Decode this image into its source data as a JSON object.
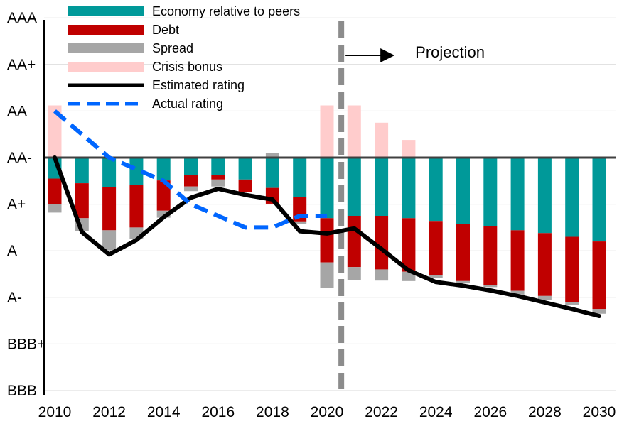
{
  "chart_data": {
    "type": "bar",
    "title": "",
    "xlabel": "",
    "ylabel": "",
    "baseline_rating": "AA-",
    "y_ticks": [
      "AAA",
      "AA+",
      "AA",
      "AA-",
      "A+",
      "A",
      "A-",
      "BBB+",
      "BBB"
    ],
    "y_range_notches": [
      -5,
      3
    ],
    "x_tick_labels": [
      "2010",
      "2012",
      "2014",
      "2016",
      "2018",
      "2020",
      "2022",
      "2024",
      "2026",
      "2028",
      "2030"
    ],
    "years": [
      2010,
      2011,
      2012,
      2013,
      2014,
      2015,
      2016,
      2017,
      2018,
      2019,
      2020,
      2021,
      2022,
      2023,
      2024,
      2025,
      2026,
      2027,
      2028,
      2029,
      2030
    ],
    "series": [
      {
        "name": "Economy relative to peers",
        "color": "#009999",
        "kind": "bar",
        "values": [
          -0.45,
          -0.55,
          -0.63,
          -0.59,
          -0.49,
          -0.37,
          -0.37,
          -0.47,
          -0.65,
          -0.85,
          -1.3,
          -1.25,
          -1.25,
          -1.3,
          -1.36,
          -1.42,
          -1.47,
          -1.56,
          -1.62,
          -1.7,
          -1.8
        ]
      },
      {
        "name": "Debt",
        "color": "#C00000",
        "kind": "bar",
        "values": [
          -0.55,
          -0.75,
          -0.93,
          -0.91,
          -0.65,
          -0.25,
          -0.1,
          -0.27,
          -0.34,
          -0.52,
          -0.95,
          -1.1,
          -1.15,
          -1.15,
          -1.16,
          -1.23,
          -1.27,
          -1.3,
          -1.35,
          -1.4,
          -1.45
        ]
      },
      {
        "name": "Spread",
        "color": "#A6A6A6",
        "kind": "bar",
        "values": [
          -0.18,
          -0.28,
          -0.43,
          -0.25,
          -0.15,
          -0.1,
          -0.15,
          0,
          0.1,
          -0.05,
          -0.55,
          -0.28,
          -0.24,
          -0.2,
          -0.07,
          -0.05,
          -0.04,
          -0.08,
          -0.08,
          -0.06,
          -0.1
        ]
      },
      {
        "name": "Crisis bonus",
        "color": "#FFCCCC",
        "kind": "bar",
        "values": [
          1.12,
          0,
          0,
          0,
          0,
          0,
          0,
          0,
          0,
          0,
          1.12,
          1.12,
          0.75,
          0.38,
          0,
          0,
          0,
          0,
          0,
          0,
          0
        ]
      },
      {
        "name": "Estimated rating",
        "color": "#000000",
        "kind": "line",
        "values": [
          0,
          -1.6,
          -2.08,
          -1.77,
          -1.28,
          -0.86,
          -0.67,
          -0.8,
          -0.9,
          -1.58,
          -1.63,
          -1.52,
          -1.96,
          -2.42,
          -2.67,
          -2.75,
          -2.85,
          -2.97,
          -3.11,
          -3.25,
          -3.4
        ]
      },
      {
        "name": "Actual rating",
        "color": "#0066FF",
        "kind": "line-dashed",
        "values": [
          1.0,
          0.5,
          0,
          -0.25,
          -0.5,
          -1.0,
          -1.25,
          -1.5,
          -1.5,
          -1.25,
          -1.25,
          null,
          null,
          null,
          null,
          null,
          null,
          null,
          null,
          null,
          null
        ]
      }
    ],
    "projection_start": 2020.5,
    "annotation": "Projection",
    "grid": "horizontal",
    "legend": "top-left"
  }
}
